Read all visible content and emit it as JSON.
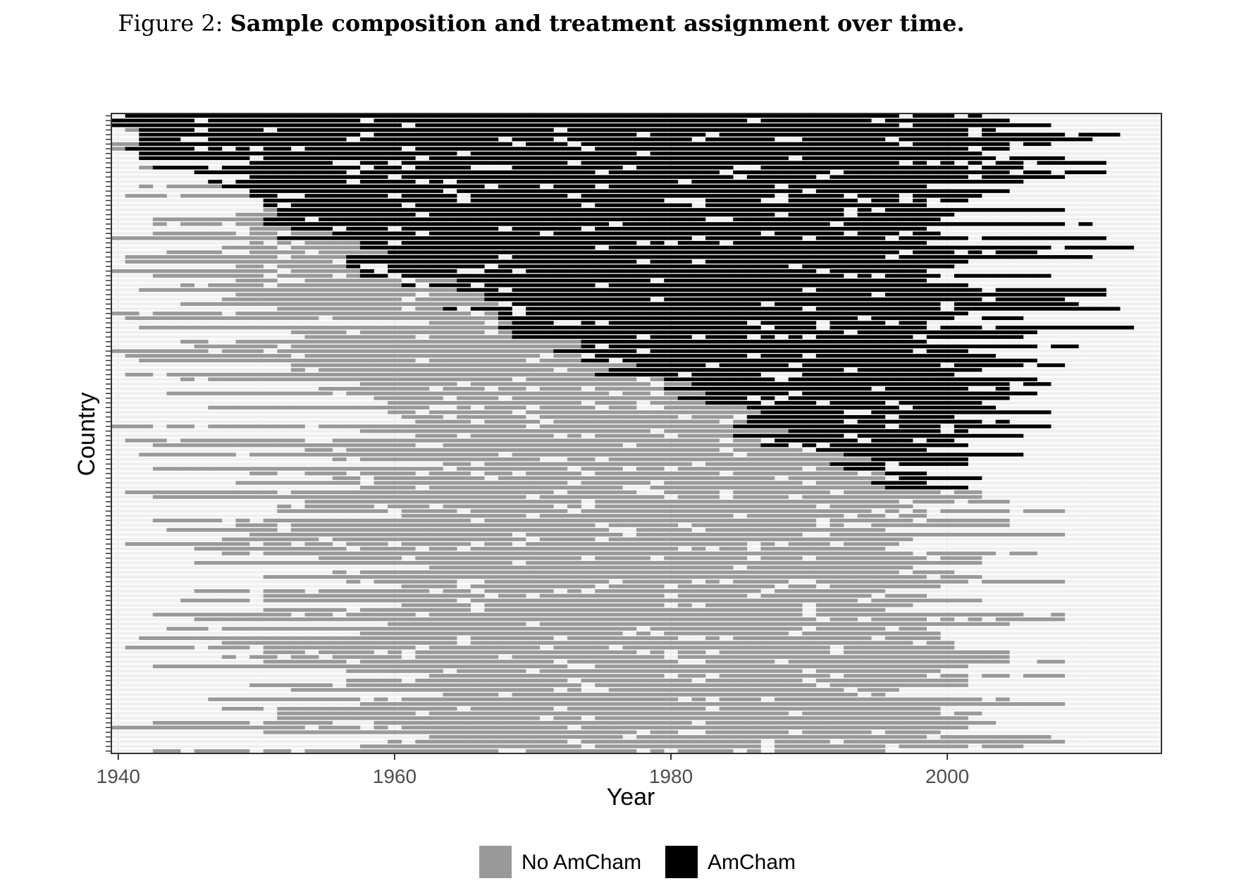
{
  "caption": {
    "prefix": "Figure 2:",
    "title": "Sample composition and treatment assignment over time."
  },
  "chart_data": {
    "type": "heatmap",
    "xlabel": "Year",
    "ylabel": "Country",
    "xlim": [
      1939.5,
      2015.5
    ],
    "x_ticks": [
      1940,
      1960,
      1980,
      2000
    ],
    "x_tick_labels": [
      "1940",
      "1960",
      "1980",
      "2000"
    ],
    "n_countries": 136,
    "y_tick_labels_shown": false,
    "grid": true,
    "legend": {
      "position": "bottom",
      "entries": [
        {
          "label": "No AmCham",
          "color": "#999999"
        },
        {
          "label": "AmCham",
          "color": "#000000"
        }
      ]
    },
    "colors": {
      "no_amcham": "#999999",
      "amcham": "#000000",
      "missing": "#f0f0f0",
      "panel_border": "#333333"
    },
    "approximate_treatment_onset_by_country_group": [
      {
        "countries": "1-10",
        "sample_start": 1940,
        "amcham_start": 1940,
        "sample_end": 2003
      },
      {
        "countries": "11-20",
        "sample_start": 1945,
        "amcham_start": 1952,
        "sample_end": 2005
      },
      {
        "countries": "21-30",
        "sample_start": 1942,
        "amcham_start": 1961,
        "sample_end": 2006
      },
      {
        "countries": "31-40",
        "sample_start": 1944,
        "amcham_start": 1967,
        "sample_end": 2008
      },
      {
        "countries": "41-50",
        "sample_start": 1943,
        "amcham_start": 1975,
        "sample_end": 2010
      },
      {
        "countries": "51-60",
        "sample_start": 1946,
        "amcham_start": 1985,
        "sample_end": 2012
      },
      {
        "countries": "61-70",
        "sample_start": 1945,
        "amcham_start": 1992,
        "sample_end": 2009
      },
      {
        "countries": "71-80",
        "sample_start": 1948,
        "amcham_start": 1997,
        "sample_end": 2007
      },
      {
        "countries": "81-136",
        "sample_start": 1950,
        "amcham_start": null,
        "sample_end": 2003
      }
    ]
  }
}
